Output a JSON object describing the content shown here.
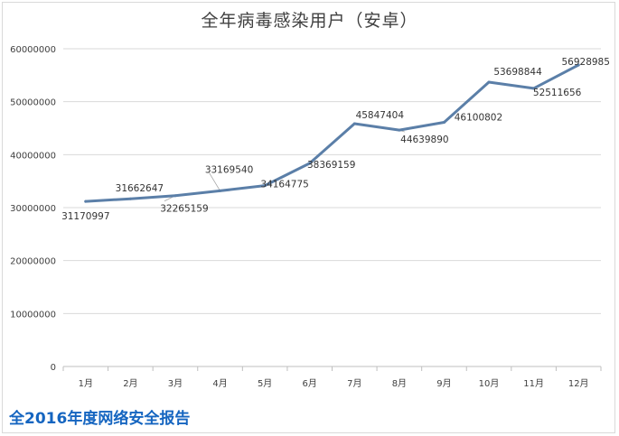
{
  "chart_data": {
    "type": "line",
    "title": "全年病毒感染用户（安卓）",
    "xlabel": "",
    "ylabel": "",
    "categories": [
      "1月",
      "2月",
      "3月",
      "4月",
      "5月",
      "6月",
      "7月",
      "8月",
      "9月",
      "10月",
      "11月",
      "12月"
    ],
    "series": [
      {
        "values": [
          31170997,
          31662647,
          32265159,
          33169540,
          34164775,
          38369159,
          45847404,
          44639890,
          46100802,
          53698844,
          52511656,
          56928985
        ],
        "color": "#5b7fa8"
      }
    ],
    "ylim": [
      0,
      60000000
    ],
    "yticks": [
      "0",
      "10000000",
      "20000000",
      "30000000",
      "40000000",
      "50000000",
      "60000000"
    ],
    "grid": true,
    "legend": "none"
  },
  "watermark": {
    "text": "全2016年度网络安全报告"
  }
}
